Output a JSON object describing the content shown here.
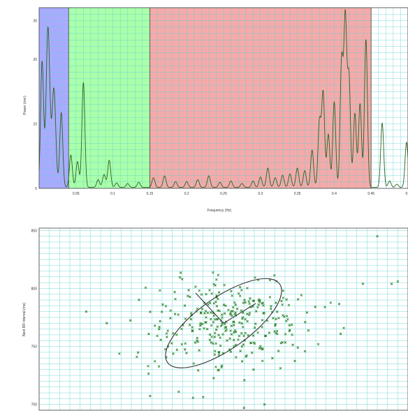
{
  "chart_data": [
    {
      "type": "line",
      "xlabel": "Frequency (Hz)",
      "ylabel": "Power (ms²)",
      "xlim": [
        0,
        0.5
      ],
      "ylim": [
        0,
        28
      ],
      "xticks": [
        "0.05",
        "0.1",
        "0.15",
        "0.2",
        "0.25",
        "0.3",
        "0.35",
        "0.4",
        "0.45",
        "0.5"
      ],
      "yticks": [
        "0",
        "10",
        "20",
        "26"
      ],
      "grid": true,
      "bands": [
        {
          "from": 0,
          "to": 0.04,
          "color": "#aaaaff"
        },
        {
          "from": 0.04,
          "to": 0.15,
          "color": "#aaffaa"
        },
        {
          "from": 0.15,
          "to": 0.45,
          "color": "#f5aaaa"
        },
        {
          "from": 0.45,
          "to": 0.5,
          "color": "#ffffff"
        }
      ],
      "series": [
        {
          "color": "#2f5f1f",
          "peaks": [
            [
              0.004,
              19.5,
              0.002
            ],
            [
              0.012,
              24.8,
              0.0025
            ],
            [
              0.02,
              15.3,
              0.0025
            ],
            [
              0.03,
              11.6,
              0.002
            ],
            [
              0.043,
              5.0,
              0.002
            ],
            [
              0.052,
              4.0,
              0.002
            ],
            [
              0.06,
              16.3,
              0.002
            ],
            [
              0.08,
              1.2,
              0.002
            ],
            [
              0.088,
              2.0,
              0.002
            ],
            [
              0.095,
              4.2,
              0.002
            ],
            [
              0.105,
              0.7,
              0.002
            ],
            [
              0.12,
              0.6,
              0.002
            ],
            [
              0.135,
              0.8,
              0.002
            ],
            [
              0.155,
              1.5,
              0.002
            ],
            [
              0.17,
              1.8,
              0.002
            ],
            [
              0.185,
              0.9,
              0.002
            ],
            [
              0.2,
              0.9,
              0.002
            ],
            [
              0.215,
              1.2,
              0.002
            ],
            [
              0.23,
              1.8,
              0.002
            ],
            [
              0.245,
              0.8,
              0.002
            ],
            [
              0.26,
              1.0,
              0.002
            ],
            [
              0.275,
              0.6,
              0.002
            ],
            [
              0.29,
              1.0,
              0.002
            ],
            [
              0.3,
              1.6,
              0.002
            ],
            [
              0.31,
              3.0,
              0.002
            ],
            [
              0.32,
              1.5,
              0.002
            ],
            [
              0.33,
              1.9,
              0.002
            ],
            [
              0.34,
              2.1,
              0.002
            ],
            [
              0.35,
              3.0,
              0.002
            ],
            [
              0.36,
              2.6,
              0.002
            ],
            [
              0.37,
              5.8,
              0.002
            ],
            [
              0.38,
              10.2,
              0.002
            ],
            [
              0.385,
              14.6,
              0.002
            ],
            [
              0.392,
              8.2,
              0.002
            ],
            [
              0.4,
              13.3,
              0.002
            ],
            [
              0.41,
              19.6,
              0.002
            ],
            [
              0.415,
              26.0,
              0.002
            ],
            [
              0.42,
              17.0,
              0.002
            ],
            [
              0.428,
              11.5,
              0.002
            ],
            [
              0.435,
              13.0,
              0.002
            ],
            [
              0.443,
              23.0,
              0.002
            ],
            [
              0.465,
              10.0,
              0.002
            ],
            [
              0.475,
              1.0,
              0.002
            ],
            [
              0.485,
              0.5,
              0.002
            ],
            [
              0.498,
              7.0,
              0.002
            ]
          ]
        }
      ]
    },
    {
      "type": "scatter",
      "ylabel": "Next RR Interval (ms)",
      "xlabel": "",
      "ylim": [
        695,
        852
      ],
      "yticks": [
        "700",
        "750",
        "800",
        "850"
      ],
      "grid": true,
      "marker": "x",
      "marker_color": "#1a7a1a",
      "point_count": 330,
      "ellipse": {
        "center": [
          770,
          770
        ],
        "width_along": 40,
        "height_across": 24,
        "angle_deg": 35
      },
      "series": [
        {
          "name": "",
          "points": "generated"
        }
      ]
    }
  ]
}
